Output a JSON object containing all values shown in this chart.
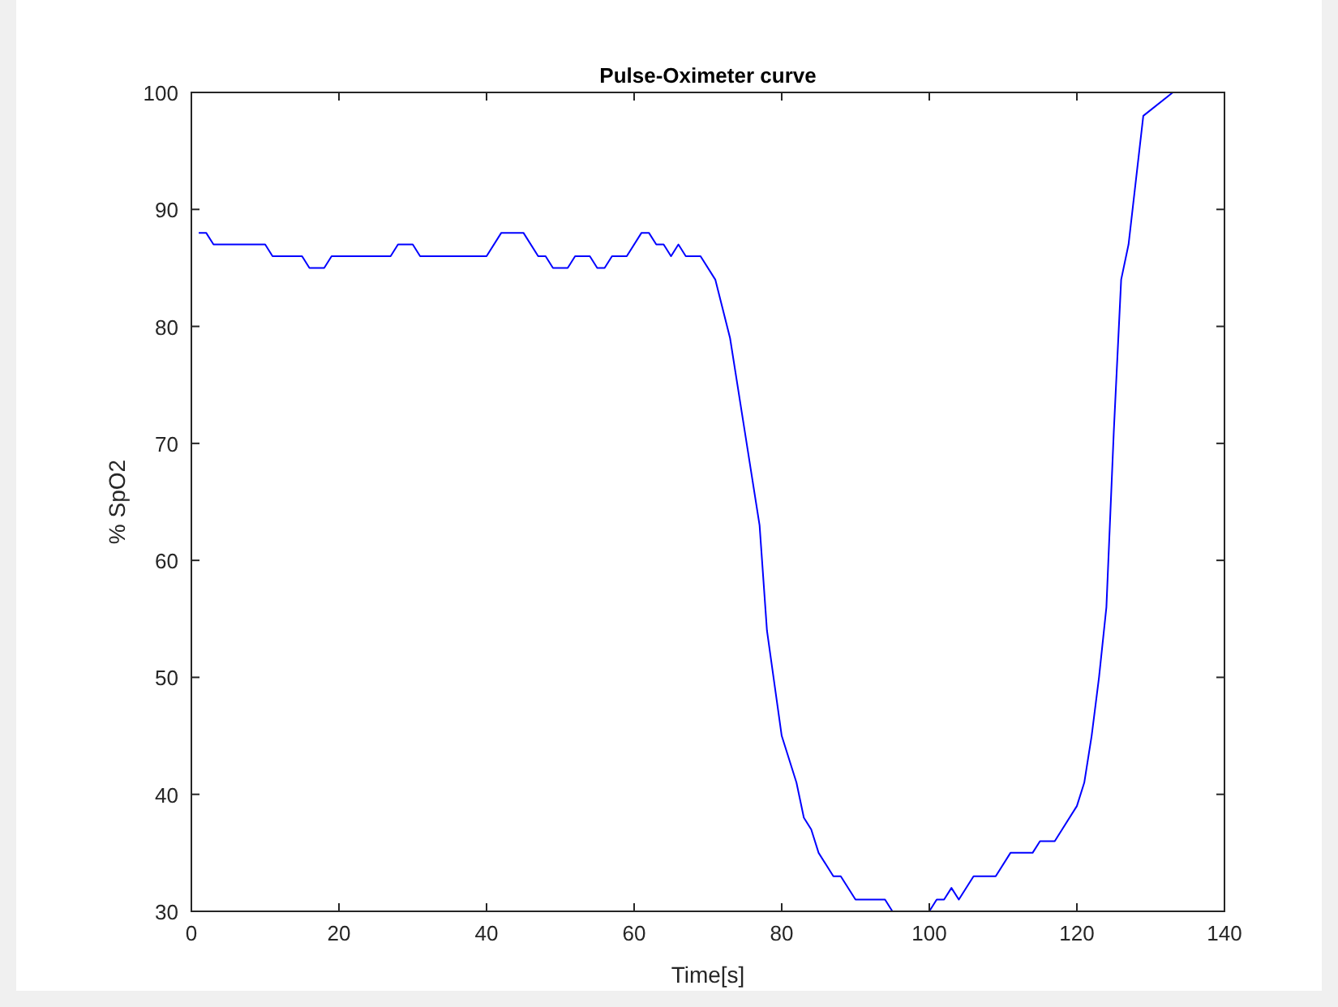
{
  "chart_data": {
    "type": "line",
    "title": "Pulse-Oximeter curve",
    "xlabel": "Time[s]",
    "ylabel": "% SpO2",
    "xlim": [
      0,
      140
    ],
    "ylim": [
      30,
      100
    ],
    "xticks": [
      0,
      20,
      40,
      60,
      80,
      100,
      120,
      140
    ],
    "yticks": [
      30,
      40,
      50,
      60,
      70,
      80,
      90,
      100
    ],
    "marker": "none",
    "line_style": "solid",
    "series": [
      {
        "color": "#0000ff",
        "x": [
          1,
          2,
          3,
          10,
          11,
          15,
          16,
          18,
          19,
          27,
          28,
          30,
          31,
          40,
          42,
          45,
          47,
          48,
          49,
          51,
          52,
          54,
          55,
          56,
          57,
          59,
          61,
          62,
          63,
          64,
          65,
          66,
          67,
          69,
          71,
          73,
          74,
          75,
          77,
          78,
          80,
          82,
          83,
          84,
          85,
          87,
          88,
          90,
          94,
          95,
          100,
          101,
          102,
          103,
          104,
          106,
          109,
          111,
          114,
          115,
          117,
          120,
          121,
          122,
          123,
          124,
          125,
          126,
          127,
          129,
          133
        ],
        "values": [
          88,
          88,
          87,
          87,
          86,
          86,
          85,
          85,
          86,
          86,
          87,
          87,
          86,
          86,
          88,
          88,
          86,
          86,
          85,
          85,
          86,
          86,
          85,
          85,
          86,
          86,
          88,
          88,
          87,
          87,
          86,
          87,
          86,
          86,
          84,
          79,
          75,
          71,
          63,
          54,
          45,
          41,
          38,
          37,
          35,
          33,
          33,
          31,
          31,
          30,
          30,
          31,
          31,
          32,
          31,
          33,
          33,
          35,
          35,
          36,
          36,
          39,
          41,
          45,
          50,
          56,
          71,
          84,
          87,
          98,
          100
        ]
      }
    ]
  }
}
